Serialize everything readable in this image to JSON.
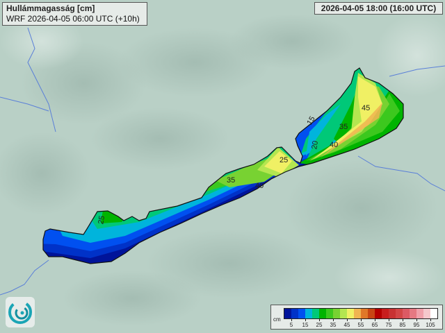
{
  "title": "Hullámmagasság [cm]",
  "run": "WRF 2026-04-05 06:00 UTC (+10h)",
  "valid_time": "2026-04-05 18:00 (16:00 UTC)",
  "legend": {
    "unit": "cm",
    "labels": [
      "5",
      "15",
      "25",
      "35",
      "45",
      "55",
      "65",
      "75",
      "85",
      "95",
      "105"
    ],
    "colors": [
      "#00149a",
      "#0032c8",
      "#0050f0",
      "#00b4dc",
      "#00c878",
      "#00b400",
      "#3cc81e",
      "#78d232",
      "#b4e650",
      "#f0f064",
      "#f0b450",
      "#e07828",
      "#c84614",
      "#b40000",
      "#c81e1e",
      "#c83232",
      "#d24646",
      "#dc5a64",
      "#e67882",
      "#f0a0aa",
      "#f5c8cc",
      "#ffffff"
    ]
  },
  "contour_labels": [
    "25",
    "35",
    "40",
    "25",
    "15",
    "20",
    "45",
    "35",
    "40"
  ],
  "logo": "logo-swirl"
}
